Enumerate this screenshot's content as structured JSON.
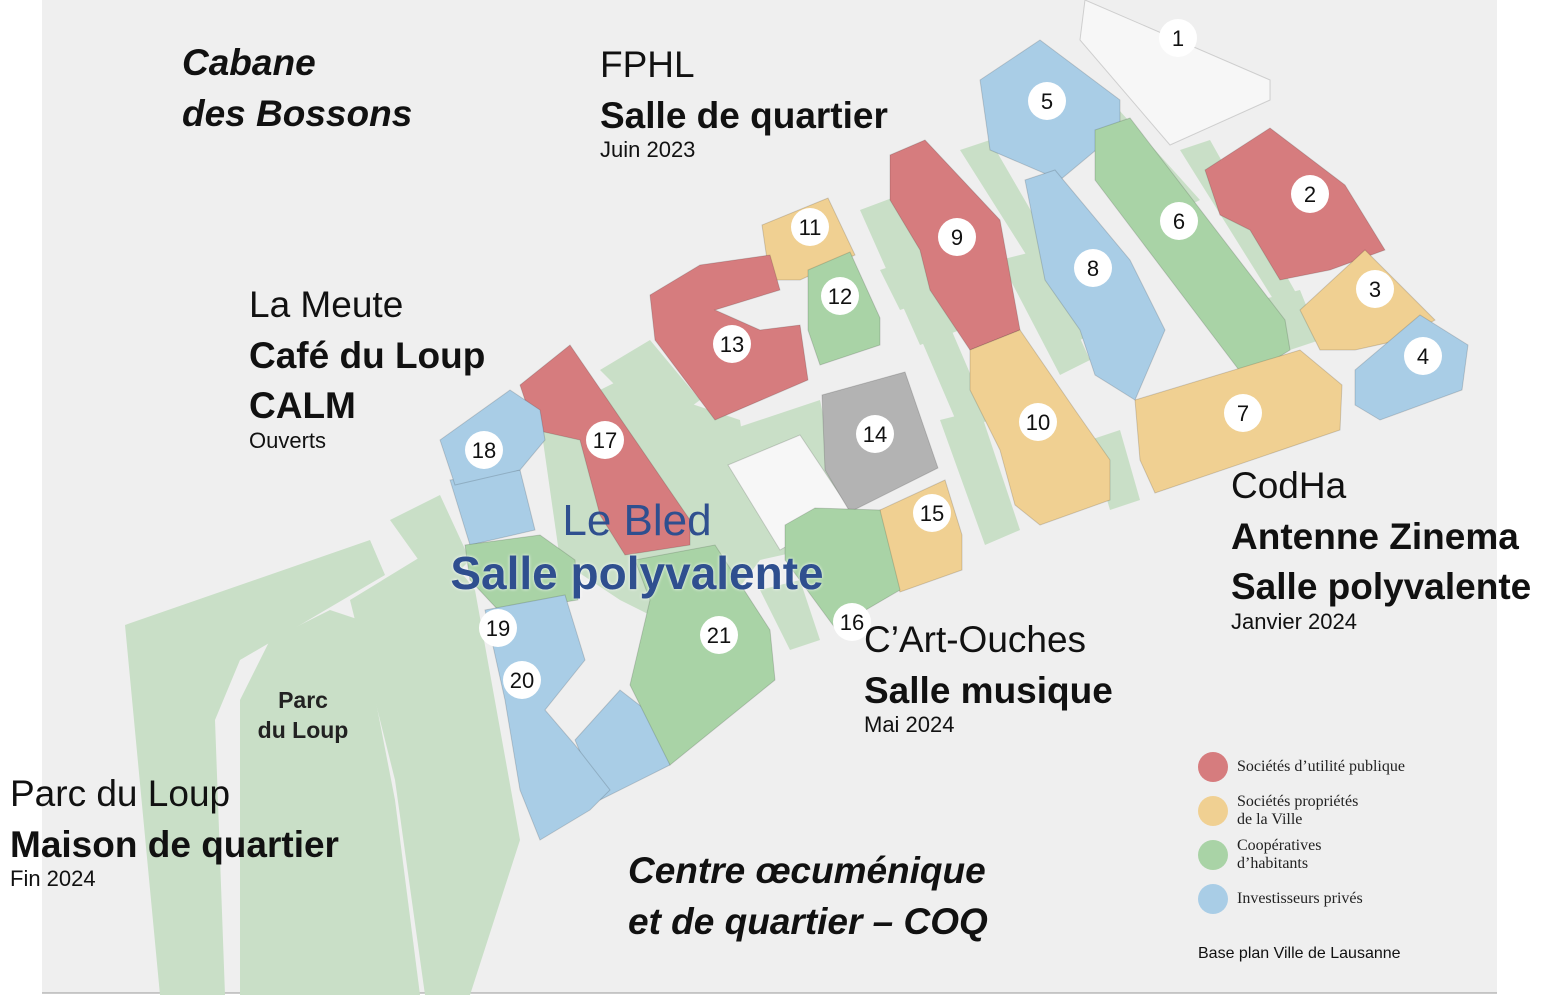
{
  "colors": {
    "public_utility": "#d67c7e",
    "city_owned": "#f0d092",
    "cooperatives": "#a9d3a6",
    "private": "#a9cde6",
    "other": "#b3b3b3",
    "unassigned": "#f7f7f7",
    "park": "#c9dfc7",
    "ground": "#efefef"
  },
  "buildings": [
    {
      "n": "1",
      "category": "unassigned"
    },
    {
      "n": "2",
      "category": "public_utility"
    },
    {
      "n": "3",
      "category": "city_owned"
    },
    {
      "n": "4",
      "category": "private"
    },
    {
      "n": "5",
      "category": "private"
    },
    {
      "n": "6",
      "category": "cooperatives"
    },
    {
      "n": "7",
      "category": "city_owned"
    },
    {
      "n": "8",
      "category": "private"
    },
    {
      "n": "9",
      "category": "public_utility"
    },
    {
      "n": "10",
      "category": "city_owned"
    },
    {
      "n": "11",
      "category": "city_owned"
    },
    {
      "n": "12",
      "category": "cooperatives"
    },
    {
      "n": "13",
      "category": "public_utility"
    },
    {
      "n": "14",
      "category": "other"
    },
    {
      "n": "15",
      "category": "city_owned"
    },
    {
      "n": "16",
      "category": "cooperatives"
    },
    {
      "n": "17",
      "category": "public_utility"
    },
    {
      "n": "18",
      "category": "private"
    },
    {
      "n": "19",
      "category": "cooperatives"
    },
    {
      "n": "20",
      "category": "private"
    },
    {
      "n": "21",
      "category": "cooperatives"
    }
  ],
  "park_label": [
    "Parc",
    "du Loup"
  ],
  "venues": {
    "cabane": {
      "line1": "Cabane",
      "line2": "des Bossons"
    },
    "fphl": {
      "org": "FPHL",
      "name": "Salle de quartier",
      "date": "Juin 2023"
    },
    "meute": {
      "org": "La Meute",
      "name1": "Café du Loup",
      "name2": "CALM",
      "date": "Ouverts"
    },
    "bled": {
      "org": "Le Bled",
      "name": "Salle polyvalente"
    },
    "codha": {
      "org": "CodHa",
      "name1": "Antenne Zinema",
      "name2": "Salle polyvalente",
      "date": "Janvier 2024"
    },
    "cart": {
      "org": "C’Art-Ouches",
      "name": "Salle musique",
      "date": "Mai 2024"
    },
    "parc": {
      "org": "Parc du Loup",
      "name": "Maison de quartier",
      "date": "Fin 2024"
    },
    "coq": {
      "line1": "Centre œcuménique",
      "line2": "et de quartier – COQ"
    }
  },
  "legend": [
    {
      "label": "Sociétés d’utilité publique",
      "color": "#d67c7e"
    },
    {
      "label": "Sociétés propriétés de la Ville",
      "color": "#f0d092"
    },
    {
      "label": "Coopératives d’habitants",
      "color": "#a9d3a6"
    },
    {
      "label": "Investisseurs privés",
      "color": "#a9cde6"
    }
  ],
  "credit": "Base plan Ville de Lausanne"
}
